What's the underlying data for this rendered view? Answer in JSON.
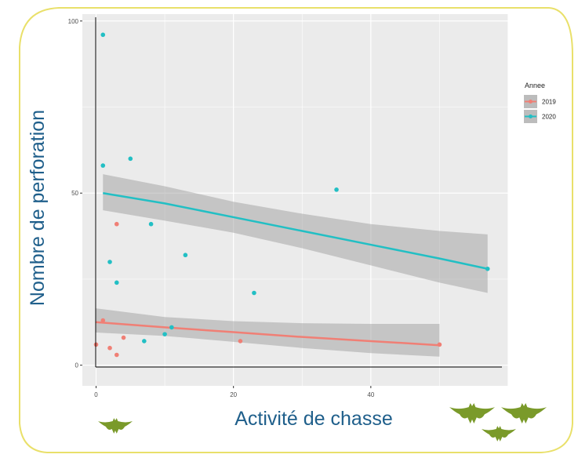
{
  "chart_data": {
    "type": "scatter",
    "title": "",
    "xlabel": "Activité de chasse",
    "ylabel": "Nombre de perforation",
    "xlim": [
      -2,
      60
    ],
    "ylim": [
      -6,
      102
    ],
    "xticks": [
      0,
      20,
      40
    ],
    "yticks": [
      0,
      50,
      100
    ],
    "xtick_labels": [
      "0",
      "20",
      "40"
    ],
    "ytick_labels": [
      "0",
      "50",
      "100"
    ],
    "grid": true,
    "legend": {
      "title": "Annee",
      "placement": "right"
    },
    "series": [
      {
        "name": "2019",
        "color": "#f07f75",
        "points": [
          [
            0,
            6
          ],
          [
            1,
            13
          ],
          [
            2,
            5
          ],
          [
            3,
            3
          ],
          [
            3,
            41
          ],
          [
            4,
            8
          ],
          [
            21,
            7
          ],
          [
            50,
            6
          ]
        ],
        "fit": [
          [
            0,
            12.5
          ],
          [
            10,
            11
          ],
          [
            20,
            9.6
          ],
          [
            30,
            8.2
          ],
          [
            40,
            7
          ],
          [
            50,
            5.8
          ]
        ],
        "ci_upper": [
          [
            0,
            16.5
          ],
          [
            10,
            14
          ],
          [
            20,
            12.8
          ],
          [
            30,
            12.2
          ],
          [
            40,
            12
          ],
          [
            50,
            12
          ]
        ],
        "ci_lower": [
          [
            0,
            9.5
          ],
          [
            10,
            8.5
          ],
          [
            20,
            6.8
          ],
          [
            30,
            5
          ],
          [
            40,
            3.5
          ],
          [
            50,
            2.5
          ]
        ]
      },
      {
        "name": "2020",
        "color": "#22bfc4",
        "points": [
          [
            1,
            96
          ],
          [
            1,
            58
          ],
          [
            2,
            30
          ],
          [
            3,
            24
          ],
          [
            5,
            60
          ],
          [
            7,
            7
          ],
          [
            8,
            41
          ],
          [
            10,
            9
          ],
          [
            11,
            11
          ],
          [
            13,
            32
          ],
          [
            23,
            21
          ],
          [
            35,
            51
          ],
          [
            57,
            28
          ]
        ],
        "fit": [
          [
            1,
            50
          ],
          [
            10,
            47
          ],
          [
            20,
            43
          ],
          [
            30,
            39
          ],
          [
            40,
            35
          ],
          [
            50,
            31
          ],
          [
            57,
            28
          ]
        ],
        "ci_upper": [
          [
            1,
            55.5
          ],
          [
            10,
            52
          ],
          [
            20,
            47.5
          ],
          [
            30,
            44
          ],
          [
            40,
            41
          ],
          [
            50,
            39
          ],
          [
            57,
            38
          ]
        ],
        "ci_lower": [
          [
            1,
            45
          ],
          [
            10,
            42
          ],
          [
            20,
            38.5
          ],
          [
            30,
            34
          ],
          [
            40,
            29
          ],
          [
            50,
            24
          ],
          [
            57,
            21
          ]
        ]
      }
    ]
  },
  "decor": {
    "frame_color": "#e9e06a",
    "band_color": "#a0a0a0",
    "panel_color": "#ebebeb",
    "grid_color": "#ffffff",
    "icons": [
      "bat-icon",
      "bat-icon",
      "bat-icon",
      "bat-icon"
    ],
    "bat_color": "#7a9a2a"
  }
}
